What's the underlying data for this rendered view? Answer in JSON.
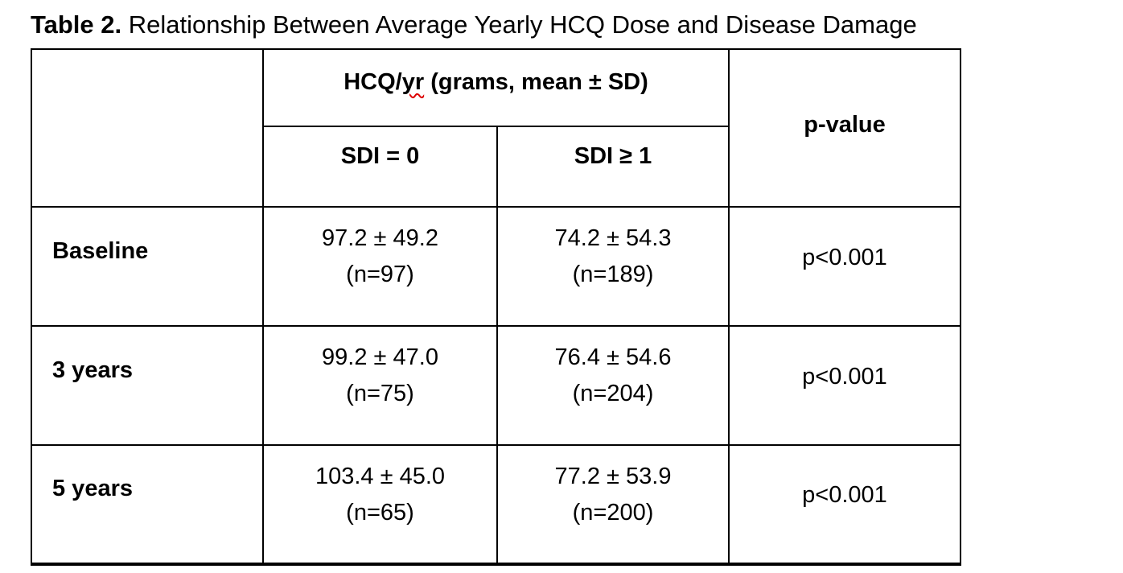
{
  "document": {
    "title_prefix": "Table 2.",
    "title_rest": " Relationship Between Average Yearly HCQ Dose and Disease Damage"
  },
  "table": {
    "header": {
      "group_label_pre": "HCQ/",
      "group_label_misspelled": "yr",
      "group_label_post": " (grams, mean ± SD)",
      "sub_col_sdi0": "SDI = 0",
      "sub_col_sdi1": "SDI ≥ 1",
      "pvalue_col": "p-value"
    },
    "rows": [
      {
        "label": "Baseline",
        "sdi0_mean": "97.2 ± 49.2",
        "sdi0_n": "(n=97)",
        "sdi1_mean": "74.2 ± 54.3",
        "sdi1_n": "(n=189)",
        "p": "p<0.001"
      },
      {
        "label": "3 years",
        "sdi0_mean": "99.2 ± 47.0",
        "sdi0_n": "(n=75)",
        "sdi1_mean": "76.4 ± 54.6",
        "sdi1_n": "(n=204)",
        "p": "p<0.001"
      },
      {
        "label": "5 years",
        "sdi0_mean": "103.4 ± 45.0",
        "sdi0_n": "(n=65)",
        "sdi1_mean": "77.2 ± 53.9",
        "sdi1_n": "(n=200)",
        "p": "p<0.001"
      }
    ],
    "colors": {
      "border": "#000000",
      "text": "#000000",
      "background": "#ffffff",
      "spellcheck_squiggle": "#dd0000"
    }
  }
}
